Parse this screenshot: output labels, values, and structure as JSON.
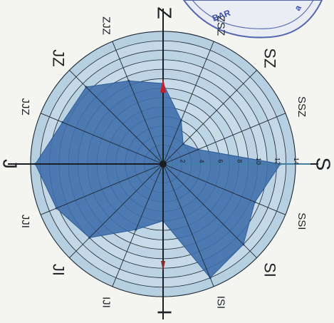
{
  "chart_data": {
    "type": "radar",
    "directions": [
      {
        "label": "S",
        "bearing": 90
      },
      {
        "label": "SSI",
        "bearing": 112.5
      },
      {
        "label": "SI",
        "bearing": 135
      },
      {
        "label": "ISI",
        "bearing": 157.5
      },
      {
        "label": "I",
        "bearing": 180
      },
      {
        "label": "IJI",
        "bearing": 202.5
      },
      {
        "label": "JI",
        "bearing": 225
      },
      {
        "label": "JJI",
        "bearing": 247.5
      },
      {
        "label": "J",
        "bearing": 270
      },
      {
        "label": "JJZ",
        "bearing": 292.5
      },
      {
        "label": "JZ",
        "bearing": 315
      },
      {
        "label": "ZJZ",
        "bearing": 337.5
      },
      {
        "label": "Z",
        "bearing": 0
      },
      {
        "label": "ZSZ",
        "bearing": 22.5
      },
      {
        "label": "SZ",
        "bearing": 45
      },
      {
        "label": "SSZ",
        "bearing": 67.5
      }
    ],
    "ring_labels": [
      "2",
      "4",
      "6",
      "8",
      "10",
      "12",
      "14"
    ],
    "rmax": 14,
    "values": [
      12.4,
      10.5,
      12.0,
      13.0,
      6.0,
      7.5,
      11.0,
      12.2,
      13.5,
      11.5,
      11.5,
      9.5,
      8.5,
      5.0,
      3.0,
      4.0
    ],
    "colors": {
      "fill": "#3f6fab",
      "ring_fill_outer": "#b7cfe1",
      "ring_fill_inner": "#cfe0ec",
      "grid": "#1f2a33",
      "arrow": "#c51f2b"
    }
  },
  "stamp": {
    "fragment_1": "BAR",
    "fragment_2": "a"
  }
}
